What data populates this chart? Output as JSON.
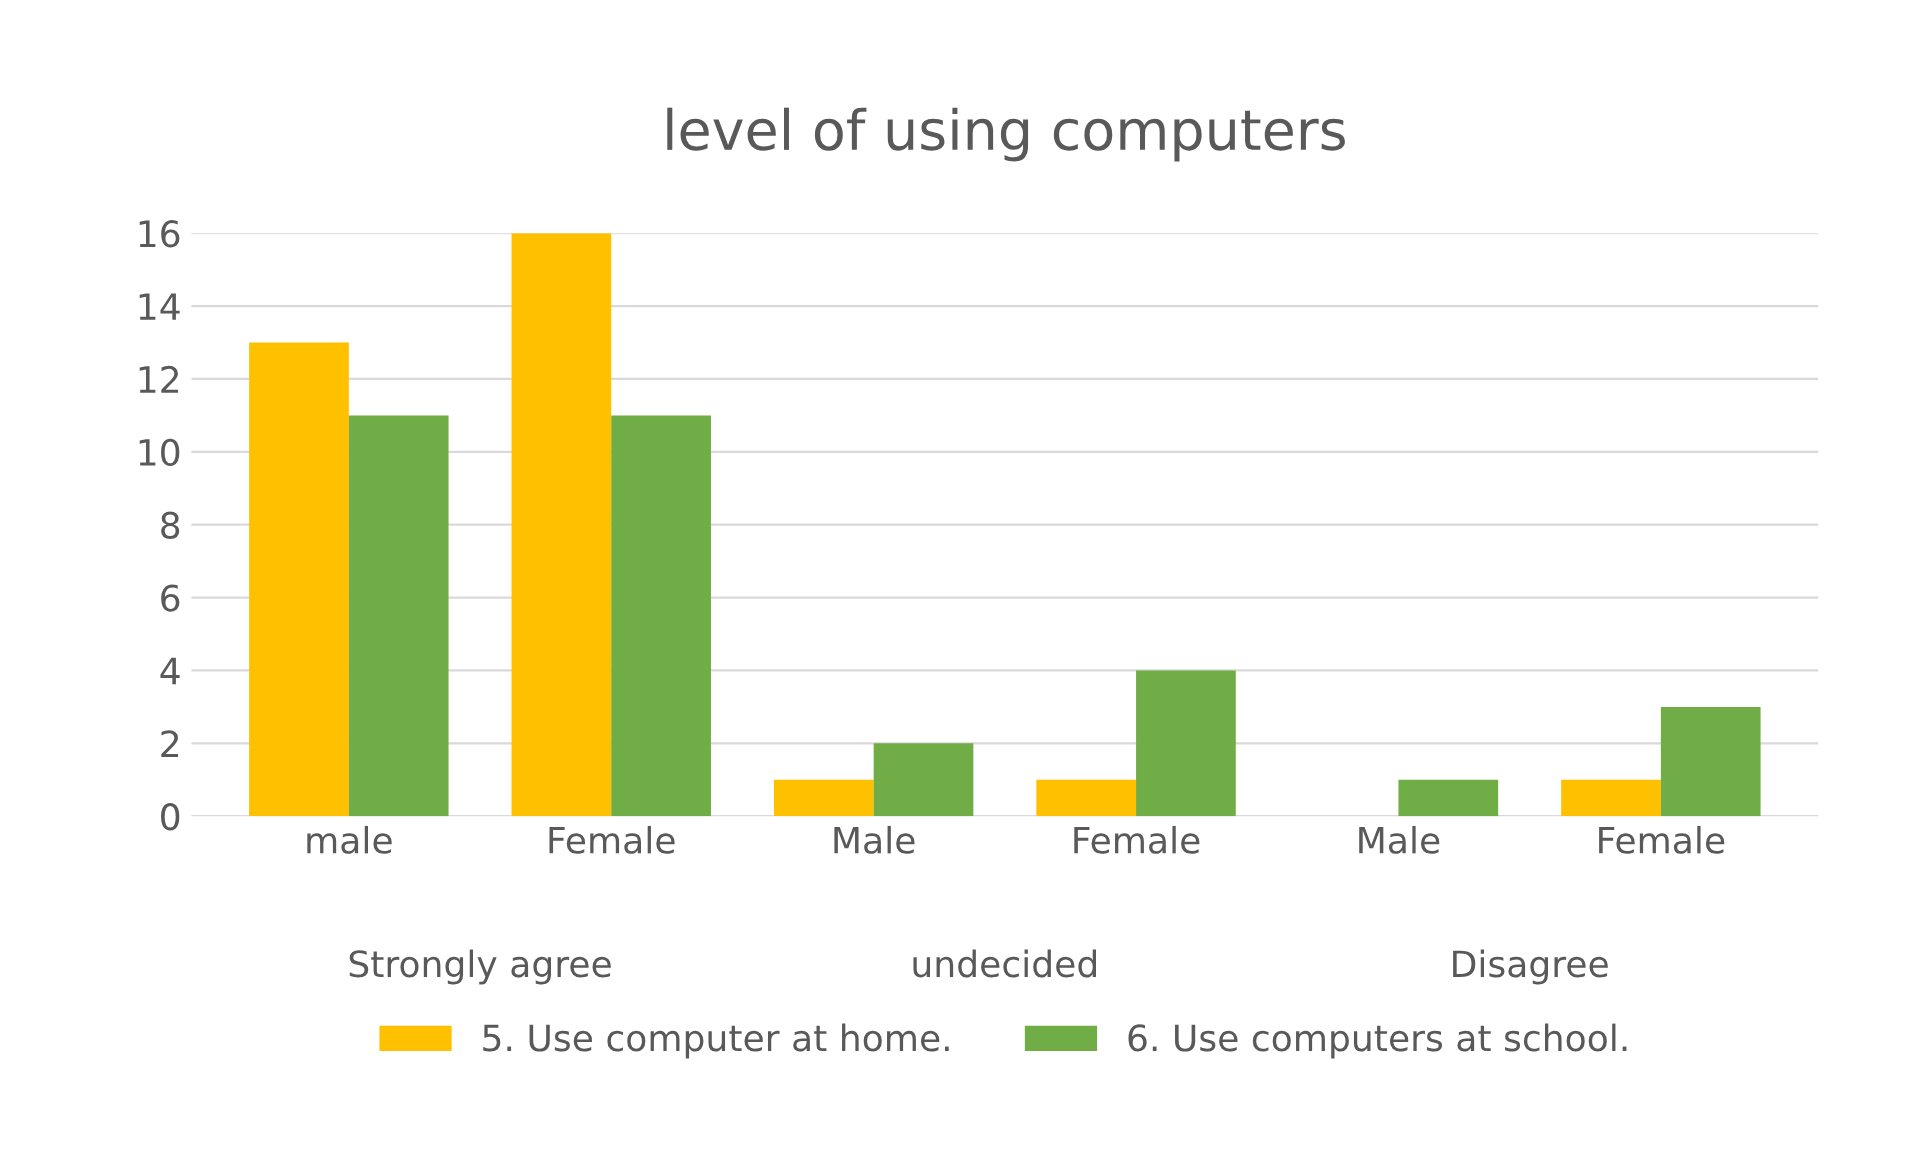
{
  "chart_data": {
    "type": "bar",
    "title": "level of using computers",
    "categories": [
      "male",
      "Female",
      "Male",
      "Female",
      "Male",
      "Female"
    ],
    "series": [
      {
        "name": "5. Use computer at home.",
        "color": "#ffc000",
        "values": [
          13,
          16,
          1,
          1,
          0,
          1
        ]
      },
      {
        "name": "6. Use computers at school.",
        "color": "#70ad47",
        "values": [
          11,
          11,
          2,
          4,
          1,
          3
        ]
      }
    ],
    "annotations": [
      "Strongly agree",
      "undecided",
      "Disagree"
    ],
    "ylim": [
      0,
      16
    ],
    "yticks": [
      0,
      2,
      4,
      6,
      8,
      10,
      12,
      14,
      16
    ],
    "grid": "y",
    "legend": "bottom"
  }
}
